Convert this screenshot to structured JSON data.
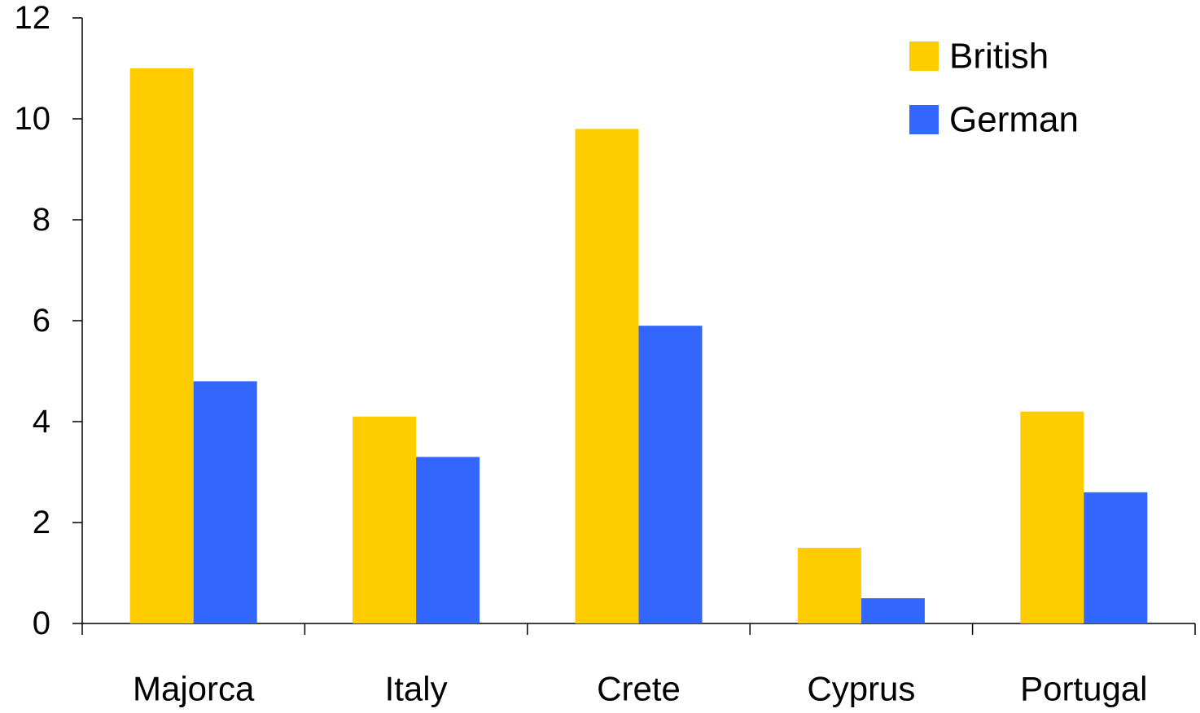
{
  "chart_data": {
    "type": "bar",
    "title": "",
    "xlabel": "",
    "ylabel": "",
    "categories": [
      "Majorca",
      "Italy",
      "Crete",
      "Cyprus",
      "Portugal"
    ],
    "series": [
      {
        "name": "British",
        "color": "#FFCC00",
        "values": [
          11.0,
          4.1,
          9.8,
          1.5,
          4.2
        ]
      },
      {
        "name": "German",
        "color": "#3366FF",
        "values": [
          4.8,
          3.3,
          5.9,
          0.5,
          2.6
        ]
      }
    ],
    "ylim": [
      0,
      12
    ],
    "yticks": [
      0,
      2,
      4,
      6,
      8,
      10,
      12
    ],
    "grid": false,
    "legend_position": "top-right"
  }
}
